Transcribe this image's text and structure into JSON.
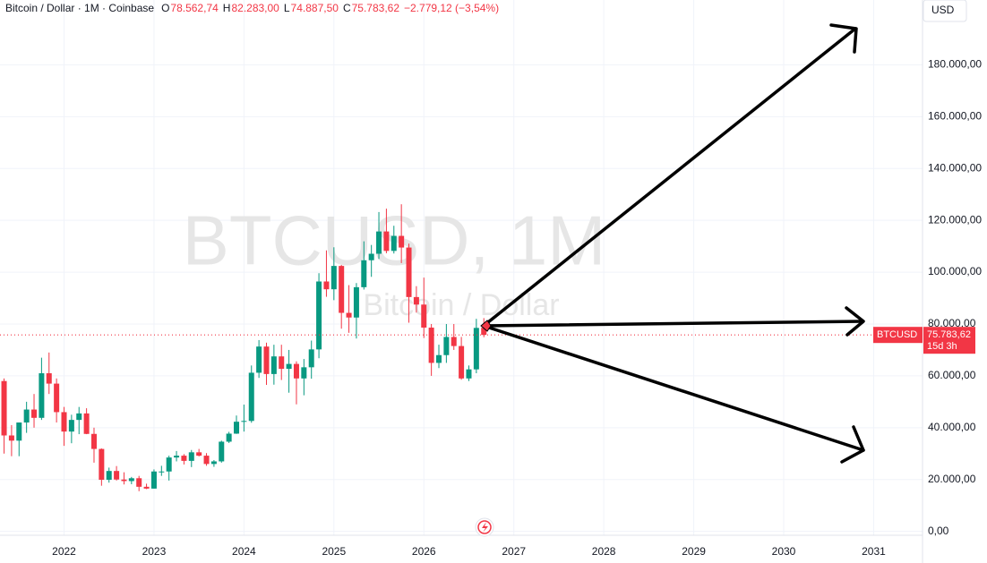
{
  "chart_data": {
    "type": "candlestick",
    "title": "Bitcoin / Dollar · 1M · Coinbase",
    "ohlc": [
      {
        "label": "O",
        "value": "78.562,74"
      },
      {
        "label": "H",
        "value": "82.283,00"
      },
      {
        "label": "L",
        "value": "74.887,50"
      },
      {
        "label": "C",
        "value": "75.783,62"
      }
    ],
    "change": "−2.779,12 (−3,54%)",
    "watermark": "BTCUSD, 1M",
    "watermark_subtitle": "Bitcoin / Dollar",
    "currency": "USD",
    "symbol": "BTCUSD",
    "last_price_label": "75.783,62",
    "countdown": "15d 3h",
    "up_color": "#089981",
    "down_color": "#f23645",
    "grid": true,
    "open": [
      58,
      37,
      35,
      42,
      47,
      43.8,
      61,
      57,
      46,
      38.5,
      43,
      45.5,
      37.6,
      31.8,
      19.9,
      23.3,
      20,
      19.4,
      20.5,
      17.2,
      16.5,
      23.1,
      23.1,
      28.5,
      29.2,
      27.2,
      30.5,
      29.2,
      26,
      27,
      34.6,
      37.7,
      42.3,
      42.6,
      61.2,
      71.3,
      60.7,
      67.5,
      62.7,
      64.6,
      59,
      63.3,
      70.2,
      96.4,
      93.4,
      102.4,
      84.3,
      82.5,
      94.2,
      104.6,
      107.1,
      115.7,
      108.2,
      114,
      109.5,
      90.4,
      87.5,
      78.6,
      65,
      68,
      75,
      71.5,
      59,
      62.5,
      78.56274
    ],
    "high": [
      59,
      41,
      42,
      50,
      53,
      67,
      69,
      59,
      48,
      45,
      48,
      47.5,
      40,
      32,
      24.6,
      25.2,
      22.8,
      21,
      21.4,
      18.4,
      23.9,
      25.3,
      29.2,
      31,
      29.8,
      31.4,
      31.8,
      30.2,
      27.5,
      35,
      38.4,
      44.7,
      48.9,
      64,
      73.8,
      72.8,
      72,
      72,
      70,
      65.6,
      66.5,
      73.6,
      99.6,
      108.4,
      109.6,
      102.8,
      95,
      95.8,
      111.9,
      110.5,
      123.2,
      124.5,
      117.9,
      126.2,
      111,
      94.6,
      97.9,
      80,
      72,
      80,
      80,
      75,
      64,
      82,
      82.283
    ],
    "low": [
      30,
      29,
      29,
      38,
      40,
      43,
      53,
      42,
      33,
      34,
      37.5,
      37.5,
      26.5,
      17.6,
      18.8,
      19.6,
      18.1,
      18.2,
      15.5,
      16.3,
      16.5,
      21.4,
      19.6,
      27,
      25.8,
      24.8,
      28.9,
      25.3,
      24.9,
      26.5,
      34.1,
      37.6,
      38.5,
      41.9,
      59.2,
      56.5,
      56.6,
      58.4,
      53.5,
      49,
      52.5,
      58.9,
      66.8,
      90.5,
      89.2,
      78.2,
      76.6,
      74.4,
      93.3,
      98.2,
      105.1,
      107.3,
      107.2,
      103.5,
      80.5,
      84.4,
      74.6,
      60,
      63,
      65,
      70,
      58.5,
      58,
      61,
      74.8875
    ],
    "close": [
      37,
      35,
      42,
      47,
      43.8,
      61,
      57,
      46,
      38.5,
      43,
      45.5,
      37.6,
      31.8,
      19.9,
      23.3,
      20,
      19.4,
      20.5,
      17.2,
      16.5,
      23.1,
      23.1,
      28.5,
      29.2,
      27.2,
      30.5,
      29.2,
      26,
      27,
      34.6,
      37.7,
      42.3,
      42.6,
      61.2,
      71.3,
      60.7,
      67.5,
      62.7,
      64.6,
      59,
      63.3,
      70.2,
      96.4,
      93.4,
      102.4,
      84.3,
      82.5,
      94.2,
      104.6,
      107.1,
      115.7,
      108.2,
      114,
      109.5,
      90.4,
      87.5,
      78.6,
      65,
      68,
      75,
      71.5,
      59,
      62.5,
      78.5,
      75.78362
    ],
    "ylim": [
      -1.5,
      205
    ],
    "yticks": [
      {
        "value": 0,
        "label": "0,00"
      },
      {
        "value": 20,
        "label": "20.000,00"
      },
      {
        "value": 40,
        "label": "40.000,00"
      },
      {
        "value": 60,
        "label": "60.000,00"
      },
      {
        "value": 80,
        "label": "80.000,00"
      },
      {
        "value": 100,
        "label": "100.000,00"
      },
      {
        "value": 120,
        "label": "120.000,00"
      },
      {
        "value": 140,
        "label": "140.000,00"
      },
      {
        "value": 160,
        "label": "160.000,00"
      },
      {
        "value": 180,
        "label": "180.000,00"
      }
    ],
    "xticks": [
      2022,
      2023,
      2024,
      2025,
      2026,
      2027,
      2028,
      2029,
      2030,
      2031
    ]
  }
}
